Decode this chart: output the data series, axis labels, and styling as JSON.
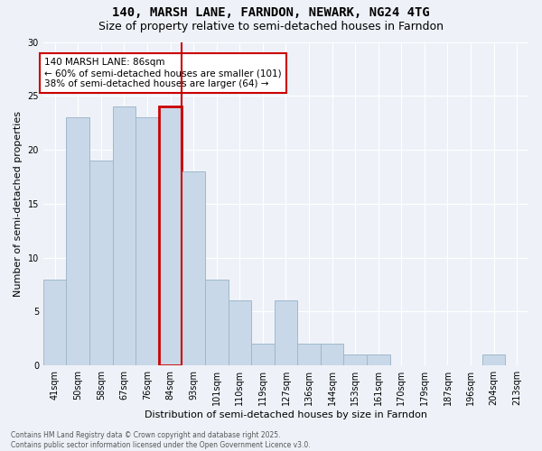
{
  "title_line1": "140, MARSH LANE, FARNDON, NEWARK, NG24 4TG",
  "title_line2": "Size of property relative to semi-detached houses in Farndon",
  "xlabel": "Distribution of semi-detached houses by size in Farndon",
  "ylabel": "Number of semi-detached properties",
  "categories": [
    "41sqm",
    "50sqm",
    "58sqm",
    "67sqm",
    "76sqm",
    "84sqm",
    "93sqm",
    "101sqm",
    "110sqm",
    "119sqm",
    "127sqm",
    "136sqm",
    "144sqm",
    "153sqm",
    "161sqm",
    "170sqm",
    "179sqm",
    "187sqm",
    "196sqm",
    "204sqm",
    "213sqm"
  ],
  "values": [
    8,
    23,
    19,
    24,
    23,
    24,
    18,
    8,
    6,
    2,
    6,
    2,
    2,
    1,
    1,
    0,
    0,
    0,
    0,
    1,
    0
  ],
  "bar_color": "#c8d8e8",
  "bar_edge_color": "#a0b8cc",
  "highlight_index": 5,
  "highlight_line_color": "#cc0000",
  "annotation_text": "140 MARSH LANE: 86sqm\n← 60% of semi-detached houses are smaller (101)\n38% of semi-detached houses are larger (64) →",
  "annotation_box_color": "#cc0000",
  "footer_text": "Contains HM Land Registry data © Crown copyright and database right 2025.\nContains public sector information licensed under the Open Government Licence v3.0.",
  "ylim": [
    0,
    30
  ],
  "yticks": [
    0,
    5,
    10,
    15,
    20,
    25,
    30
  ],
  "background_color": "#eef2f8",
  "grid_color": "#ffffff",
  "title_fontsize": 10,
  "subtitle_fontsize": 9,
  "tick_fontsize": 7,
  "ylabel_fontsize": 8,
  "xlabel_fontsize": 8,
  "footer_fontsize": 5.5,
  "annotation_fontsize": 7.5
}
